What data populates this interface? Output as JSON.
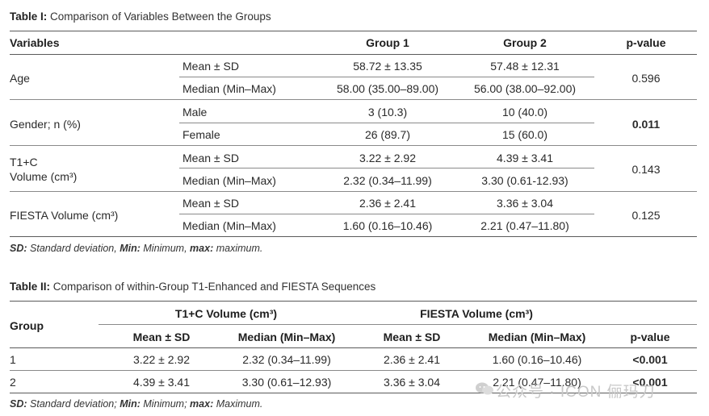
{
  "table1": {
    "caption_label": "Table I:",
    "caption_text": "Comparison of Variables Between the Groups",
    "headers": {
      "variables": "Variables",
      "group1": "Group 1",
      "group2": "Group 2",
      "pvalue": "p-value"
    },
    "rows": [
      {
        "variable": "Age",
        "pvalue": "0.596",
        "pbold": false,
        "subrows": [
          {
            "stat": "Mean ± SD",
            "g1": "58.72 ± 13.35",
            "g2": "57.48 ± 12.31"
          },
          {
            "stat": "Median (Min–Max)",
            "g1": "58.00 (35.00–89.00)",
            "g2": "56.00 (38.00–92.00)"
          }
        ]
      },
      {
        "variable": "Gender; n (%)",
        "pvalue": "0.011",
        "pbold": true,
        "subrows": [
          {
            "stat": "Male",
            "g1": "3 (10.3)",
            "g2": "10 (40.0)"
          },
          {
            "stat": "Female",
            "g1": "26 (89.7)",
            "g2": "15 (60.0)"
          }
        ]
      },
      {
        "variable_line1": "T1+C",
        "variable_line2": "Volume (cm³)",
        "pvalue": "0.143",
        "pbold": false,
        "subrows": [
          {
            "stat": "Mean ± SD",
            "g1": "3.22 ± 2.92",
            "g2": "4.39 ± 3.41"
          },
          {
            "stat": "Median (Min–Max)",
            "g1": "2.32 (0.34–11.99)",
            "g2": "3.30 (0.61-12.93)"
          }
        ]
      },
      {
        "variable": "FIESTA Volume (cm³)",
        "pvalue": "0.125",
        "pbold": false,
        "subrows": [
          {
            "stat": "Mean ± SD",
            "g1": "2.36 ± 2.41",
            "g2": "3.36 ± 3.04"
          },
          {
            "stat": "Median (Min–Max)",
            "g1": "1.60 (0.16–10.46)",
            "g2": "2.21 (0.47–11.80)"
          }
        ]
      }
    ],
    "footnote": {
      "sd_abbr": "SD:",
      "sd_text": "Standard deviation,",
      "min_abbr": "Min:",
      "min_text": "Minimum,",
      "max_abbr": "max:",
      "max_text": "maximum."
    }
  },
  "table2": {
    "caption_label": "Table II:",
    "caption_text": "Comparison of within-Group T1-Enhanced and FIESTA Sequences",
    "headers": {
      "group": "Group",
      "t1c": "T1+C Volume (cm³)",
      "fiesta": "FIESTA Volume (cm³)",
      "mean_sd": "Mean ± SD",
      "median": "Median (Min–Max)",
      "pvalue": "p-value"
    },
    "rows": [
      {
        "group": "1",
        "t1_mean": "3.22 ± 2.92",
        "t1_median": "2.32 (0.34–11.99)",
        "fi_mean": "2.36 ± 2.41",
        "fi_median": "1.60 (0.16–10.46)",
        "pvalue": "<0.001"
      },
      {
        "group": "2",
        "t1_mean": "4.39 ± 3.41",
        "t1_median": "3.30 (0.61–12.93)",
        "fi_mean": "3.36 ± 3.04",
        "fi_median": "2.21 (0.47–11.80)",
        "pvalue": "<0.001"
      }
    ],
    "footnote": {
      "sd_abbr": "SD:",
      "sd_text": "Standard deviation;",
      "min_abbr": "Min:",
      "min_text": "Minimum;",
      "max_abbr": "max:",
      "max_text": "Maximum."
    }
  },
  "watermark": {
    "text": "公众号 · ICON 俪玛刀",
    "icon": "wechat-icon"
  }
}
